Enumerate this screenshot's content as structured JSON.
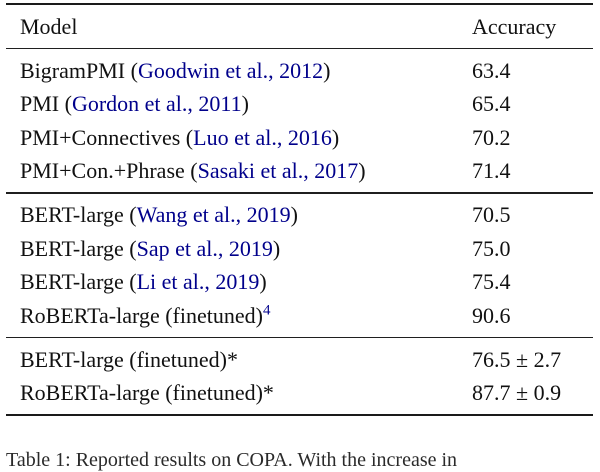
{
  "accent": {
    "citation_color": "#00008B",
    "text_color": "#111111"
  },
  "header": {
    "model": "Model",
    "accuracy": "Accuracy"
  },
  "sections": [
    {
      "rows": [
        {
          "model_prefix": "BigramPMI (",
          "citation": "Goodwin et al., 2012",
          "model_suffix": ")",
          "superscript": "",
          "accuracy": "63.4"
        },
        {
          "model_prefix": "PMI (",
          "citation": "Gordon et al., 2011",
          "model_suffix": ")",
          "superscript": "",
          "accuracy": "65.4"
        },
        {
          "model_prefix": "PMI+Connectives (",
          "citation": "Luo et al., 2016",
          "model_suffix": ")",
          "superscript": "",
          "accuracy": "70.2"
        },
        {
          "model_prefix": "PMI+Con.+Phrase (",
          "citation": "Sasaki et al., 2017",
          "model_suffix": ")",
          "superscript": "",
          "accuracy": "71.4"
        }
      ]
    },
    {
      "rows": [
        {
          "model_prefix": "BERT-large (",
          "citation": "Wang et al., 2019",
          "model_suffix": ")",
          "superscript": "",
          "accuracy": "70.5"
        },
        {
          "model_prefix": "BERT-large (",
          "citation": "Sap et al., 2019",
          "model_suffix": ")",
          "superscript": "",
          "accuracy": "75.0"
        },
        {
          "model_prefix": "BERT-large (",
          "citation": "Li et al., 2019",
          "model_suffix": ")",
          "superscript": "",
          "accuracy": "75.4"
        },
        {
          "model_prefix": "RoBERTa-large (finetuned)",
          "citation": "",
          "model_suffix": "",
          "superscript": "4",
          "accuracy": "90.6"
        }
      ]
    },
    {
      "rows": [
        {
          "model_prefix": "BERT-large (finetuned)*",
          "citation": "",
          "model_suffix": "",
          "superscript": "",
          "accuracy": "76.5 ± 2.7"
        },
        {
          "model_prefix": "RoBERTa-large (finetuned)*",
          "citation": "",
          "model_suffix": "",
          "superscript": "",
          "accuracy": "87.7 ± 0.9"
        }
      ]
    }
  ],
  "caption": {
    "visible_fragment": "Table 1: Reported results on COPA. With the increase in"
  }
}
